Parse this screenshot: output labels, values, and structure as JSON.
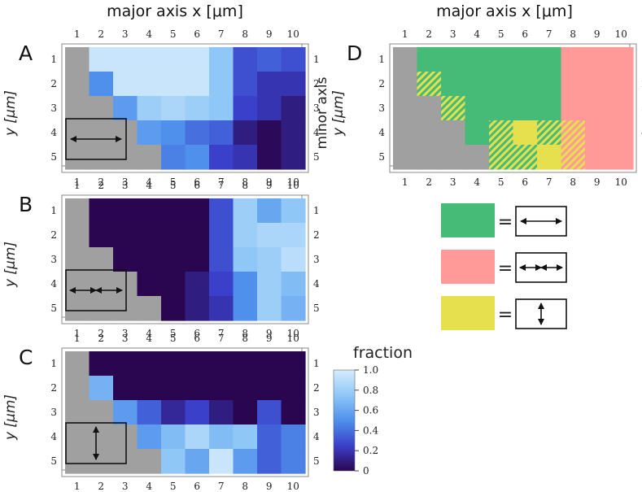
{
  "colors": {
    "gray": "#a0a0a0",
    "green": "#46bb78",
    "pink": "#ff9a98",
    "yellow": "#e6e04f",
    "colormap": [
      "#2a0550",
      "#3a40c9",
      "#4f90ec",
      "#8fc7f7",
      "#d6ecfd"
    ]
  },
  "top_xlabel": "major axis x [μm]",
  "side_ylabel": {
    "line1": "minor axis",
    "line2": "y [μm]"
  },
  "x_ticks": [
    "1",
    "2",
    "3",
    "4",
    "5",
    "6",
    "7",
    "8",
    "9",
    "10"
  ],
  "y_ticks": [
    "1",
    "2",
    "3",
    "4",
    "5"
  ],
  "chart_data": [
    {
      "panel": "A",
      "type": "heatmap",
      "x": [
        1,
        2,
        3,
        4,
        5,
        6,
        7,
        8,
        9,
        10
      ],
      "y": [
        1,
        2,
        3,
        4,
        5
      ],
      "legend_icon": "horizontal-arrow",
      "values": [
        [
          null,
          0.95,
          0.95,
          0.95,
          0.95,
          0.95,
          0.75,
          0.3,
          0.35,
          0.3
        ],
        [
          null,
          0.5,
          0.95,
          0.95,
          0.95,
          0.95,
          0.75,
          0.3,
          0.2,
          0.2
        ],
        [
          null,
          null,
          0.55,
          0.8,
          0.85,
          0.8,
          0.75,
          0.25,
          0.2,
          0.1
        ],
        [
          null,
          null,
          null,
          0.55,
          0.5,
          0.4,
          0.35,
          0.1,
          0.02,
          0.1
        ],
        [
          null,
          null,
          null,
          null,
          0.45,
          0.5,
          0.25,
          0.2,
          0.02,
          0.1
        ]
      ]
    },
    {
      "panel": "B",
      "type": "heatmap",
      "x": [
        1,
        2,
        3,
        4,
        5,
        6,
        7,
        8,
        9,
        10
      ],
      "y": [
        1,
        2,
        3,
        4,
        5
      ],
      "legend_icon": "double-arrow",
      "values": [
        [
          null,
          0.0,
          0.0,
          0.0,
          0.0,
          0.0,
          0.3,
          0.8,
          0.6,
          0.75
        ],
        [
          null,
          0.0,
          0.0,
          0.0,
          0.0,
          0.0,
          0.3,
          0.8,
          0.85,
          0.85
        ],
        [
          null,
          null,
          0.0,
          0.0,
          0.0,
          0.0,
          0.3,
          0.75,
          0.8,
          0.9
        ],
        [
          null,
          null,
          null,
          0.0,
          0.0,
          0.1,
          0.25,
          0.5,
          0.8,
          0.7
        ],
        [
          null,
          null,
          null,
          null,
          0.0,
          0.1,
          0.2,
          0.5,
          0.8,
          0.65
        ]
      ]
    },
    {
      "panel": "C",
      "type": "heatmap",
      "x": [
        1,
        2,
        3,
        4,
        5,
        6,
        7,
        8,
        9,
        10
      ],
      "y": [
        1,
        2,
        3,
        4,
        5
      ],
      "legend_icon": "vertical-arrow",
      "values": [
        [
          null,
          0.0,
          0.0,
          0.0,
          0.0,
          0.0,
          0.0,
          0.0,
          0.0,
          0.0
        ],
        [
          null,
          0.65,
          0.0,
          0.0,
          0.0,
          0.0,
          0.0,
          0.0,
          0.0,
          0.0
        ],
        [
          null,
          null,
          0.55,
          0.35,
          0.15,
          0.25,
          0.1,
          0.0,
          0.3,
          0.0
        ],
        [
          null,
          null,
          null,
          0.55,
          0.7,
          0.85,
          0.7,
          0.75,
          0.35,
          0.45
        ],
        [
          null,
          null,
          null,
          null,
          0.75,
          0.6,
          0.95,
          0.55,
          0.35,
          0.45
        ]
      ]
    },
    {
      "panel": "D",
      "type": "heatmap",
      "x": [
        1,
        2,
        3,
        4,
        5,
        6,
        7,
        8,
        9,
        10
      ],
      "y": [
        1,
        2,
        3,
        4,
        5
      ],
      "note": "categorical map: G=green, P=pink, Y=yellow, GY=green/yellow hatched, PY=pink/yellow hatched, null=gray",
      "categories": [
        [
          null,
          "G",
          "G",
          "G",
          "G",
          "G",
          "G",
          "P",
          "P",
          "P"
        ],
        [
          null,
          "GY",
          "G",
          "G",
          "G",
          "G",
          "G",
          "P",
          "P",
          "P"
        ],
        [
          null,
          null,
          "GY",
          "G",
          "G",
          "G",
          "G",
          "P",
          "P",
          "P"
        ],
        [
          null,
          null,
          null,
          "G",
          "GY",
          "Y",
          "GY",
          "PY",
          "P",
          "P"
        ],
        [
          null,
          null,
          null,
          null,
          "GY",
          "GY",
          "Y",
          "PY",
          "P",
          "P"
        ]
      ]
    }
  ],
  "colorbar": {
    "title": "fraction",
    "ticks": [
      "1.0",
      "0.8",
      "0.6",
      "0.4",
      "0.2",
      "0"
    ],
    "range": [
      0,
      1
    ]
  },
  "legend": [
    {
      "color": "green",
      "icon": "horizontal-arrow",
      "eq": "="
    },
    {
      "color": "pink",
      "icon": "double-arrow",
      "eq": "="
    },
    {
      "color": "yellow",
      "icon": "vertical-arrow",
      "eq": "="
    }
  ]
}
